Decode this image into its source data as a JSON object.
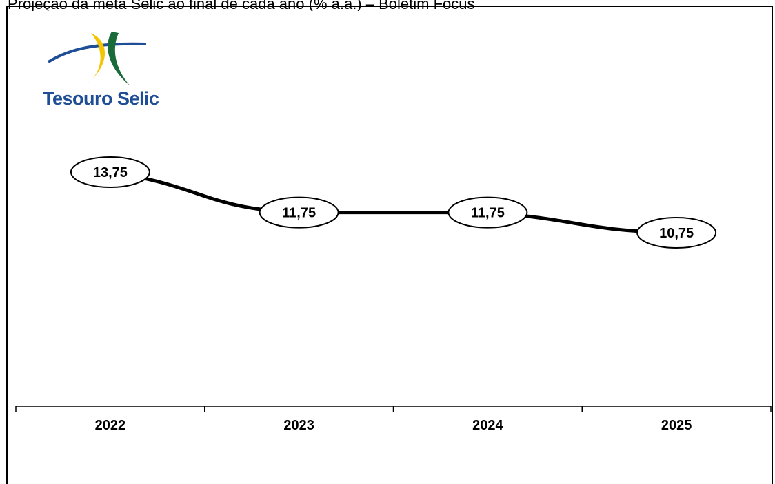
{
  "title": "Projeção da meta Selic ao final de cada ano (% a.a.) – Boletim Focus",
  "logo": {
    "text": "Tesouro Selic",
    "colors": {
      "blue": "#1f4e96",
      "yellow": "#f2c500",
      "green": "#1a6b3a"
    }
  },
  "chart_data": {
    "type": "line",
    "categories": [
      "2022",
      "2023",
      "2024",
      "2025"
    ],
    "series": [
      {
        "values": [
          13.75,
          11.75,
          11.75,
          10.75
        ],
        "labels": [
          "13,75",
          "11,75",
          "11,75",
          "10,75"
        ]
      }
    ],
    "xlabel": "",
    "ylabel": "",
    "grid": false,
    "legend": "none",
    "line_color": "#000000"
  }
}
